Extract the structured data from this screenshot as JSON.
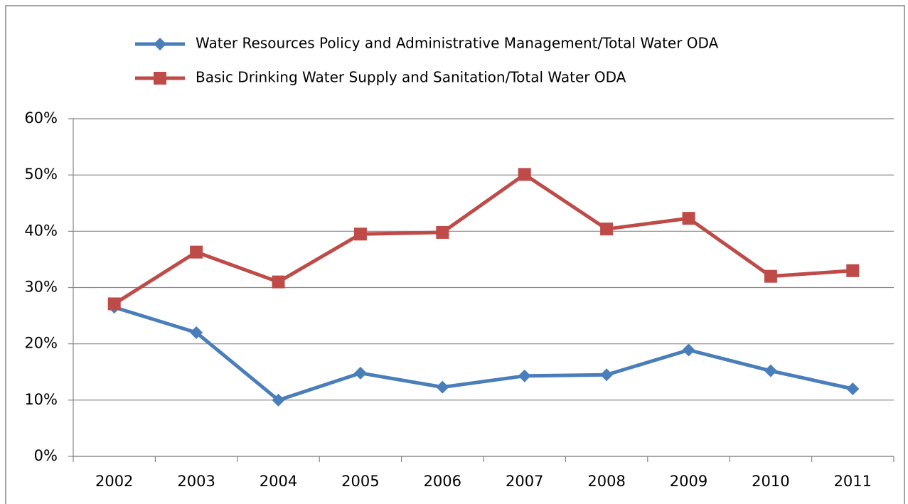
{
  "chart_data": {
    "type": "line",
    "categories": [
      "2002",
      "2003",
      "2004",
      "2005",
      "2006",
      "2007",
      "2008",
      "2009",
      "2010",
      "2011"
    ],
    "series": [
      {
        "name": "Water Resources Policy and Administrative Management/Total Water ODA",
        "color": "#4a7ebb",
        "marker": "diamond",
        "values": [
          26.5,
          22,
          10,
          14.8,
          12.3,
          14.3,
          14.5,
          18.9,
          15.2,
          12
        ]
      },
      {
        "name": "Basic Drinking Water Supply and Sanitation/Total Water ODA",
        "color": "#be4b48",
        "marker": "square",
        "values": [
          27.1,
          36.3,
          31,
          39.5,
          39.8,
          50.1,
          40.4,
          42.3,
          32,
          33
        ]
      }
    ],
    "ylim": [
      0,
      60
    ],
    "yticks": [
      {
        "value": 0,
        "label": "0%"
      },
      {
        "value": 10,
        "label": "10%"
      },
      {
        "value": 20,
        "label": "20%"
      },
      {
        "value": 30,
        "label": "30%"
      },
      {
        "value": 40,
        "label": "40%"
      },
      {
        "value": 50,
        "label": "50%"
      },
      {
        "value": 60,
        "label": "60%"
      }
    ],
    "grid": true,
    "legend": "top"
  }
}
